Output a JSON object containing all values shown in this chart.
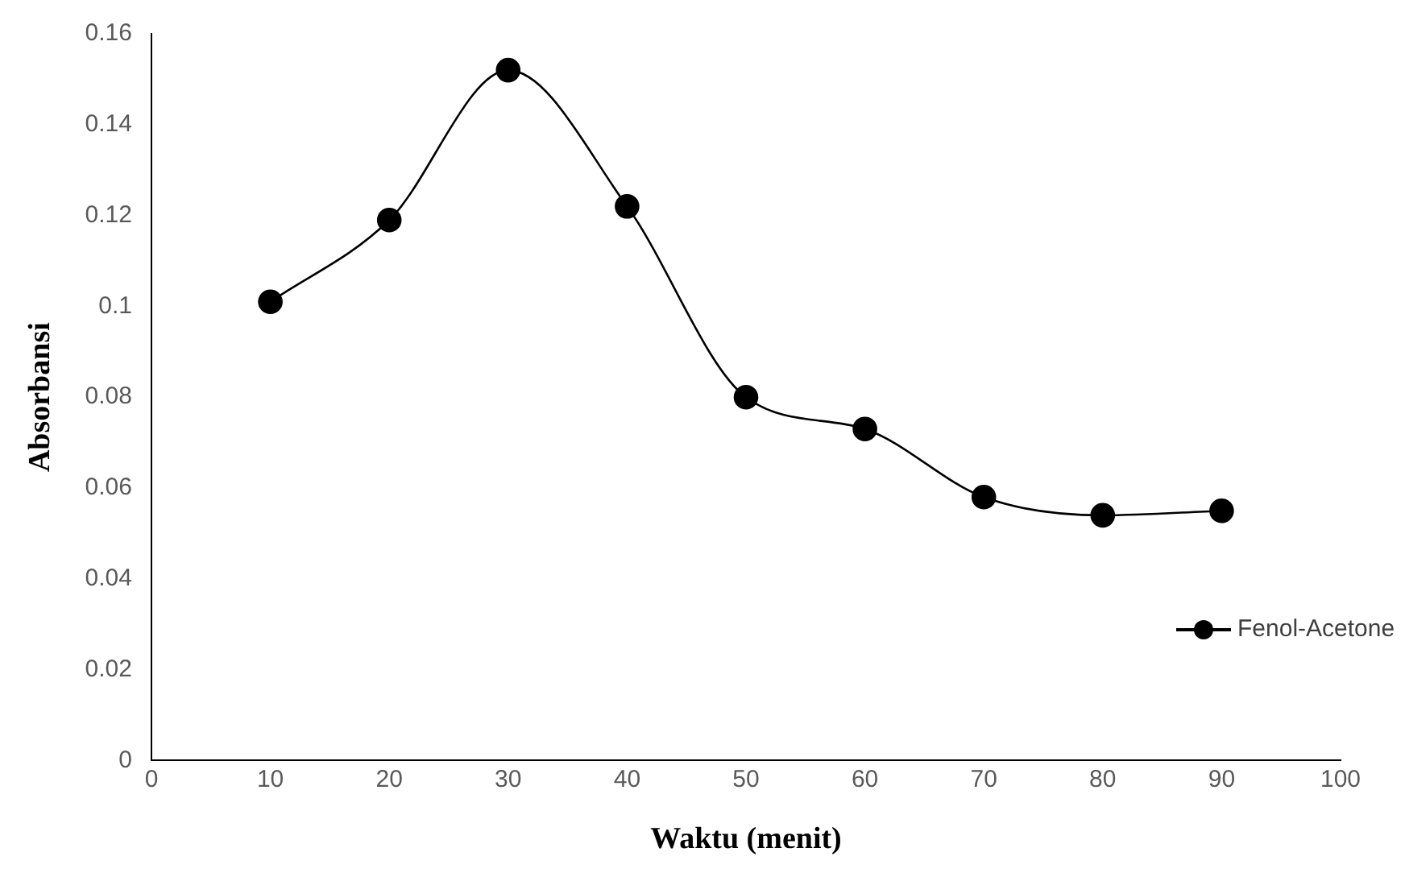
{
  "chart_data": {
    "type": "line",
    "xlabel": "Waktu (menit)",
    "ylabel": "Absorbansi",
    "x": [
      10,
      20,
      30,
      40,
      50,
      60,
      70,
      80,
      90
    ],
    "series": [
      {
        "name": "Fenol-Acetone",
        "color": "#000000",
        "values": [
          0.101,
          0.119,
          0.152,
          0.122,
          0.08,
          0.073,
          0.058,
          0.054,
          0.055
        ]
      }
    ],
    "xlim": [
      0,
      100
    ],
    "xticks": [
      0,
      10,
      20,
      30,
      40,
      50,
      60,
      70,
      80,
      90,
      100
    ],
    "ylim": [
      0,
      0.16
    ],
    "yticks": [
      0,
      0.02,
      0.04,
      0.06,
      0.08,
      0.1,
      0.12,
      0.14,
      0.16
    ],
    "grid": false,
    "legend": "right",
    "marker": "circle",
    "line_style": "solid"
  }
}
